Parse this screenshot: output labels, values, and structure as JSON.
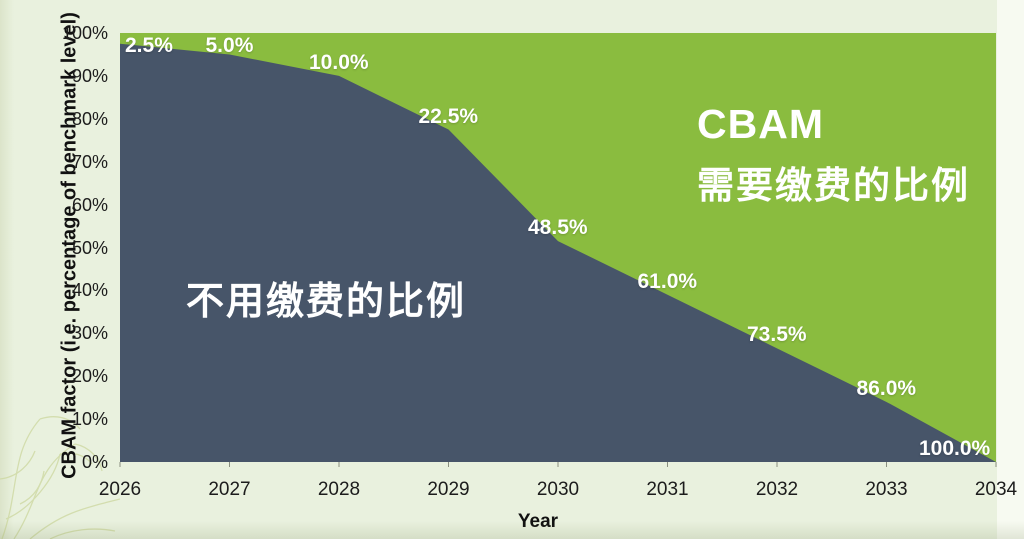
{
  "chart_data": {
    "type": "area",
    "stacked": true,
    "x": [
      2026,
      2027,
      2028,
      2029,
      2030,
      2031,
      2032,
      2033,
      2034
    ],
    "series": [
      {
        "name": "不用缴费的比例",
        "values": [
          97.5,
          95.0,
          90.0,
          77.5,
          51.5,
          39.0,
          26.5,
          14.0,
          0.0
        ],
        "color": "#475569"
      },
      {
        "name": "CBAM 需要缴费的比例",
        "values": [
          2.5,
          5.0,
          10.0,
          22.5,
          48.5,
          61.0,
          73.5,
          86.0,
          100.0
        ],
        "color": "#8abc3f"
      }
    ],
    "data_labels": [
      "2.5%",
      "5.0%",
      "10.0%",
      "22.5%",
      "48.5%",
      "61.0%",
      "73.5%",
      "86.0%",
      "100.0%"
    ],
    "xlabel": "Year",
    "ylabel": "CBAM factor (i.e. percentage of benchmark level)",
    "yticks": [
      "0%",
      "10%",
      "20%",
      "30%",
      "40%",
      "50%",
      "60%",
      "70%",
      "80%",
      "90%",
      "100%"
    ],
    "ylim": [
      0,
      100
    ],
    "grid": false,
    "legend_position": "none"
  },
  "labels": {
    "exempt_area": "不用缴费的比例",
    "cbam_line1": "CBAM",
    "cbam_line2": "需要缴费的比例"
  },
  "colors": {
    "exempt_navy": "#475569",
    "cbam_green": "#8abc3f",
    "background": "#e9f1de",
    "right_strip": "#f7faf1",
    "tick_text": "#1c1c1c",
    "label_text": "#ffffff",
    "deco_branch": "#ccd79e"
  }
}
